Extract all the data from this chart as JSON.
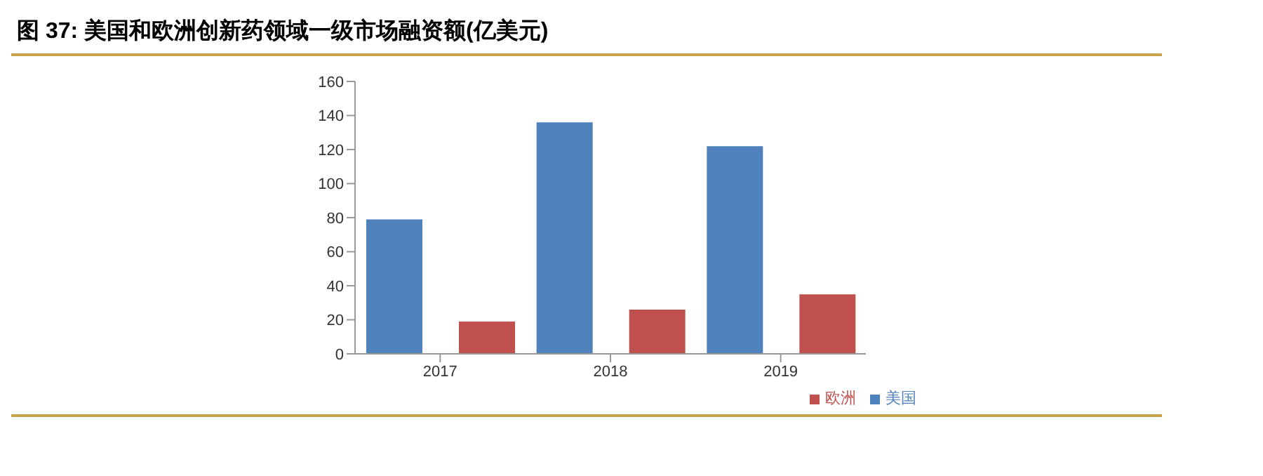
{
  "chart_data": {
    "type": "bar",
    "title": "图 37:  美国和欧洲创新药领域一级市场融资额(亿美元)",
    "categories": [
      "2017",
      "2018",
      "2019"
    ],
    "series": [
      {
        "name": "美国",
        "color": "#4f81bd",
        "values": [
          79,
          136,
          122
        ]
      },
      {
        "name": "欧洲",
        "color": "#c0504d",
        "values": [
          19,
          26,
          35
        ]
      }
    ],
    "ylim": [
      0,
      160
    ],
    "yticks": [
      0,
      20,
      40,
      60,
      80,
      100,
      120,
      140,
      160
    ],
    "grid": false,
    "legend": "bottom"
  }
}
